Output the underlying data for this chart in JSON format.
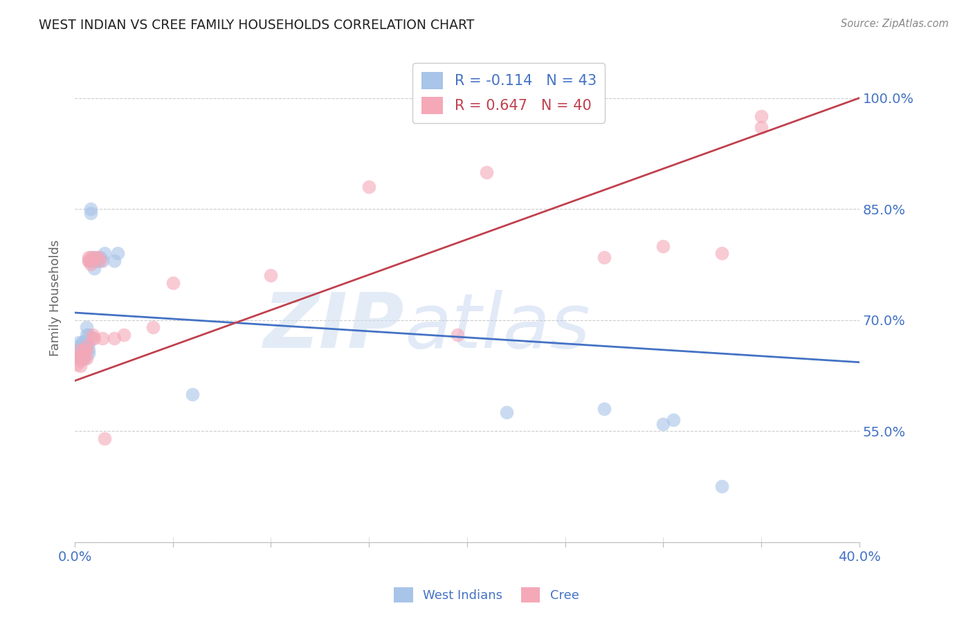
{
  "title": "WEST INDIAN VS CREE FAMILY HOUSEHOLDS CORRELATION CHART",
  "source": "Source: ZipAtlas.com",
  "ylabel": "Family Households",
  "ytick_labels": [
    "",
    "55.0%",
    "70.0%",
    "85.0%",
    "100.0%"
  ],
  "ytick_vals": [
    0.4,
    0.55,
    0.7,
    0.85,
    1.0
  ],
  "xmin": 0.0,
  "xmax": 0.4,
  "ymin": 0.4,
  "ymax": 1.06,
  "color_blue": "#a8c4e8",
  "color_pink": "#f4a8b8",
  "line_color_blue": "#4472c4",
  "line_color_pink": "#c0404e",
  "blue_line_x": [
    0.0,
    0.4
  ],
  "blue_line_y": [
    0.71,
    0.643
  ],
  "pink_line_x": [
    0.0,
    0.4
  ],
  "pink_line_y": [
    0.618,
    1.0
  ],
  "west_indians_x": [
    0.001,
    0.001,
    0.002,
    0.002,
    0.003,
    0.003,
    0.003,
    0.004,
    0.004,
    0.004,
    0.004,
    0.005,
    0.005,
    0.005,
    0.005,
    0.006,
    0.006,
    0.006,
    0.006,
    0.007,
    0.007,
    0.007,
    0.007,
    0.008,
    0.008,
    0.008,
    0.009,
    0.009,
    0.01,
    0.01,
    0.011,
    0.012,
    0.013,
    0.014,
    0.015,
    0.02,
    0.022,
    0.06,
    0.22,
    0.27,
    0.3,
    0.305,
    0.33
  ],
  "west_indians_y": [
    0.66,
    0.65,
    0.665,
    0.67,
    0.66,
    0.655,
    0.648,
    0.66,
    0.65,
    0.665,
    0.67,
    0.66,
    0.668,
    0.672,
    0.648,
    0.67,
    0.68,
    0.69,
    0.665,
    0.68,
    0.668,
    0.66,
    0.655,
    0.85,
    0.845,
    0.78,
    0.785,
    0.78,
    0.785,
    0.77,
    0.78,
    0.78,
    0.785,
    0.78,
    0.79,
    0.78,
    0.79,
    0.6,
    0.575,
    0.58,
    0.56,
    0.565,
    0.475
  ],
  "cree_x": [
    0.001,
    0.001,
    0.002,
    0.002,
    0.003,
    0.003,
    0.004,
    0.004,
    0.005,
    0.005,
    0.006,
    0.006,
    0.006,
    0.007,
    0.007,
    0.007,
    0.008,
    0.008,
    0.008,
    0.009,
    0.009,
    0.01,
    0.011,
    0.012,
    0.013,
    0.014,
    0.015,
    0.02,
    0.025,
    0.04,
    0.05,
    0.1,
    0.15,
    0.195,
    0.21,
    0.27,
    0.3,
    0.33,
    0.35,
    0.35
  ],
  "cree_y": [
    0.65,
    0.64,
    0.66,
    0.65,
    0.645,
    0.638,
    0.655,
    0.648,
    0.66,
    0.65,
    0.66,
    0.665,
    0.648,
    0.78,
    0.785,
    0.78,
    0.785,
    0.78,
    0.775,
    0.68,
    0.675,
    0.675,
    0.785,
    0.785,
    0.78,
    0.675,
    0.54,
    0.675,
    0.68,
    0.69,
    0.75,
    0.76,
    0.88,
    0.68,
    0.9,
    0.785,
    0.8,
    0.79,
    0.975,
    0.96
  ]
}
